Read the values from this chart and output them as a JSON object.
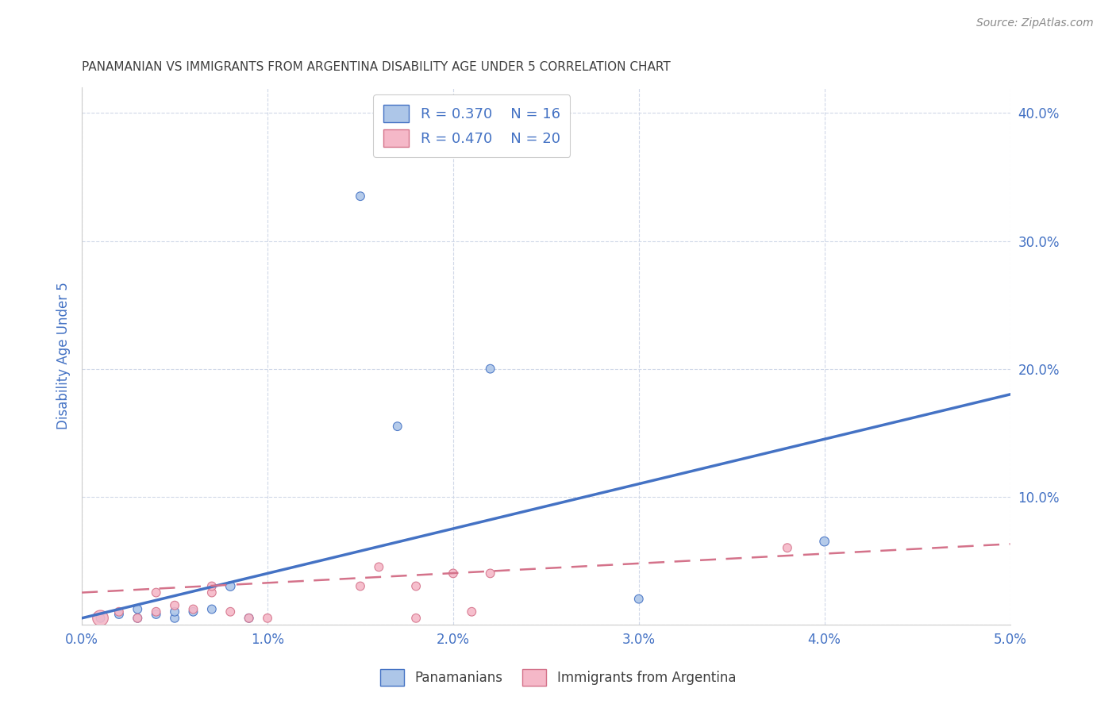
{
  "title": "PANAMANIAN VS IMMIGRANTS FROM ARGENTINA DISABILITY AGE UNDER 5 CORRELATION CHART",
  "source": "Source: ZipAtlas.com",
  "ylabel": "Disability Age Under 5",
  "xlim": [
    0.0,
    0.05
  ],
  "ylim": [
    0.0,
    0.42
  ],
  "xticks": [
    0.0,
    0.01,
    0.02,
    0.03,
    0.04,
    0.05
  ],
  "yticks": [
    0.0,
    0.1,
    0.2,
    0.3,
    0.4
  ],
  "xticklabels": [
    "0.0%",
    "1.0%",
    "2.0%",
    "3.0%",
    "4.0%",
    "5.0%"
  ],
  "yticklabels": [
    "",
    "10.0%",
    "20.0%",
    "30.0%",
    "40.0%"
  ],
  "legend1_label": "R = 0.370    N = 16",
  "legend2_label": "R = 0.470    N = 20",
  "pan_color": "#adc6e8",
  "arg_color": "#f5b8c8",
  "pan_line_color": "#4472c4",
  "arg_line_color": "#d4728a",
  "pan_x": [
    0.001,
    0.002,
    0.003,
    0.003,
    0.004,
    0.005,
    0.005,
    0.006,
    0.007,
    0.008,
    0.009,
    0.015,
    0.017,
    0.022,
    0.03,
    0.04
  ],
  "pan_y": [
    0.005,
    0.008,
    0.005,
    0.012,
    0.008,
    0.005,
    0.01,
    0.01,
    0.012,
    0.03,
    0.005,
    0.335,
    0.155,
    0.2,
    0.02,
    0.065
  ],
  "arg_x": [
    0.001,
    0.002,
    0.003,
    0.004,
    0.004,
    0.005,
    0.006,
    0.007,
    0.007,
    0.008,
    0.009,
    0.01,
    0.015,
    0.016,
    0.018,
    0.018,
    0.02,
    0.021,
    0.022,
    0.038
  ],
  "arg_y": [
    0.005,
    0.01,
    0.005,
    0.01,
    0.025,
    0.015,
    0.012,
    0.025,
    0.03,
    0.01,
    0.005,
    0.005,
    0.03,
    0.045,
    0.005,
    0.03,
    0.04,
    0.01,
    0.04,
    0.06
  ],
  "pan_size": [
    60,
    60,
    60,
    60,
    60,
    60,
    60,
    60,
    60,
    70,
    60,
    60,
    60,
    60,
    60,
    70
  ],
  "arg_size": [
    200,
    60,
    60,
    60,
    60,
    60,
    60,
    60,
    60,
    60,
    60,
    60,
    60,
    60,
    60,
    60,
    60,
    60,
    60,
    60
  ],
  "pan_line_x": [
    0.0,
    0.05
  ],
  "pan_line_y": [
    0.005,
    0.18
  ],
  "arg_line_x": [
    0.0,
    0.05
  ],
  "arg_line_y": [
    0.025,
    0.063
  ],
  "background_color": "#ffffff",
  "grid_color": "#d0d8e8",
  "title_color": "#404040",
  "axis_label_color": "#4472c4",
  "tick_label_color": "#4472c4"
}
